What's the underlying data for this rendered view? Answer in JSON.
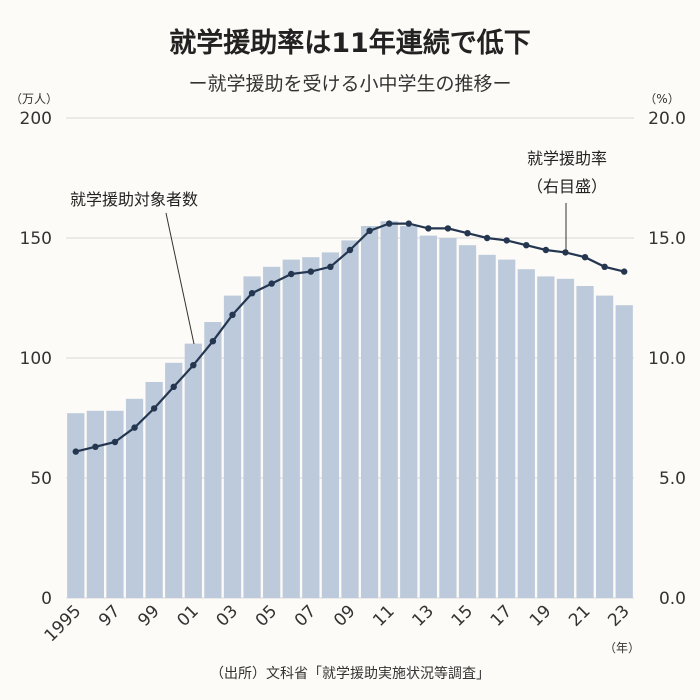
{
  "chart_data": {
    "type": "bar+line",
    "title": "就学援助率は11年連続で低下",
    "subtitle": "ー就学援助を受ける小中学生の推移ー",
    "y_left_unit": "（万人）",
    "y_right_unit": "（%）",
    "x_unit": "（年）",
    "y_left_ticks": [
      "0",
      "50",
      "100",
      "150",
      "200"
    ],
    "y_right_ticks": [
      "0.0",
      "5.0",
      "10.0",
      "15.0",
      "20.0"
    ],
    "y_left_lim": [
      0,
      200
    ],
    "y_right_lim": [
      0,
      20
    ],
    "x_tick_labels": [
      "1995",
      "97",
      "99",
      "01",
      "03",
      "05",
      "07",
      "09",
      "11",
      "13",
      "15",
      "17",
      "19",
      "21",
      "23"
    ],
    "years": [
      1995,
      1996,
      1997,
      1998,
      1999,
      2000,
      2001,
      2002,
      2003,
      2004,
      2005,
      2006,
      2007,
      2008,
      2009,
      2010,
      2011,
      2012,
      2013,
      2014,
      2015,
      2016,
      2017,
      2018,
      2019,
      2020,
      2021,
      2022,
      2023
    ],
    "series": [
      {
        "name": "就学援助対象者数",
        "type": "bar",
        "axis": "left",
        "values": [
          77,
          78,
          78,
          83,
          90,
          98,
          106,
          115,
          126,
          134,
          138,
          141,
          142,
          144,
          149,
          155,
          157,
          155,
          151,
          150,
          147,
          143,
          141,
          137,
          134,
          133,
          130,
          126,
          122
        ]
      },
      {
        "name": "就学援助率（右目盛）",
        "type": "line",
        "axis": "right",
        "values": [
          6.1,
          6.3,
          6.5,
          7.1,
          7.9,
          8.8,
          9.7,
          10.7,
          11.8,
          12.7,
          13.1,
          13.5,
          13.6,
          13.8,
          14.5,
          15.3,
          15.6,
          15.6,
          15.4,
          15.4,
          15.2,
          15.0,
          14.9,
          14.7,
          14.5,
          14.4,
          14.2,
          13.8,
          13.6
        ]
      }
    ],
    "annotations": {
      "bar_label": "就学援助対象者数",
      "line_label_1": "就学援助率",
      "line_label_2": "（右目盛）"
    },
    "source": "（出所）文科省「就学援助実施状況等調査」",
    "colors": {
      "bar": "#bccadb",
      "line": "#243650",
      "grid": "#d9d9d9",
      "background": "#fdfbf7"
    },
    "grid": true
  }
}
